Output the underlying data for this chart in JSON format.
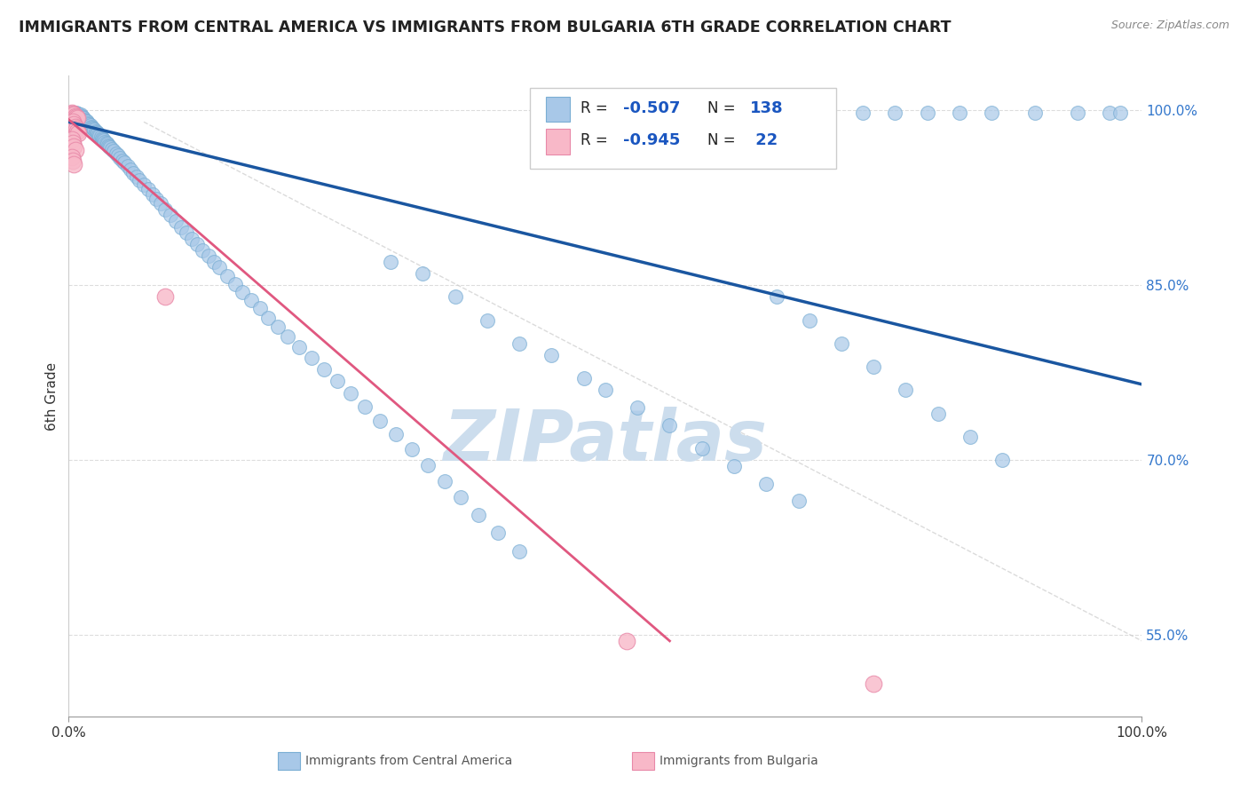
{
  "title": "IMMIGRANTS FROM CENTRAL AMERICA VS IMMIGRANTS FROM BULGARIA 6TH GRADE CORRELATION CHART",
  "source_text": "Source: ZipAtlas.com",
  "ylabel": "6th Grade",
  "xmin": 0.0,
  "xmax": 1.0,
  "ymin": 0.48,
  "ymax": 1.03,
  "yticks": [
    0.55,
    0.7,
    0.85,
    1.0
  ],
  "ytick_labels": [
    "55.0%",
    "70.0%",
    "85.0%",
    "100.0%"
  ],
  "xtick_labels": [
    "0.0%",
    "100.0%"
  ],
  "blue_color": "#a8c8e8",
  "blue_edge_color": "#7aaed4",
  "blue_line_color": "#1a56a0",
  "pink_color": "#f8b8c8",
  "pink_edge_color": "#e888a8",
  "pink_line_color": "#e05880",
  "r_value_color": "#1a56c0",
  "watermark_color": "#ccdded",
  "background_color": "#ffffff",
  "grid_color": "#dddddd",
  "blue_line_x0": 0.0,
  "blue_line_x1": 1.0,
  "blue_line_y0": 0.99,
  "blue_line_y1": 0.765,
  "pink_line_x0": 0.0,
  "pink_line_x1": 0.56,
  "pink_line_y0": 0.992,
  "pink_line_y1": 0.545,
  "diag_line_x0": 0.07,
  "diag_line_x1": 1.0,
  "diag_line_y0": 0.99,
  "diag_line_y1": 0.545
}
